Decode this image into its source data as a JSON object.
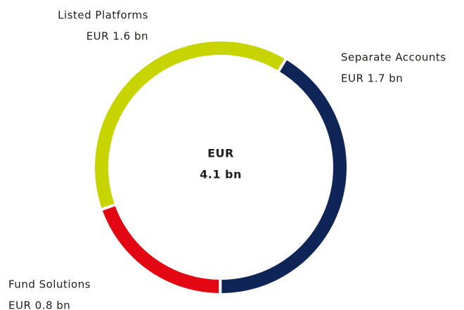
{
  "chart_data": {
    "type": "donut",
    "categories": [
      "Separate Accounts",
      "Fund Solutions",
      "Listed Platforms"
    ],
    "values": [
      1.7,
      0.8,
      1.6
    ],
    "value_labels": [
      "EUR 1.7 bn",
      "EUR 0.8 bn",
      "EUR 1.6 bn"
    ],
    "colors": [
      "#0f2557",
      "#e30613",
      "#c8d400"
    ],
    "center_text": [
      "EUR",
      "4.1 bn"
    ]
  }
}
